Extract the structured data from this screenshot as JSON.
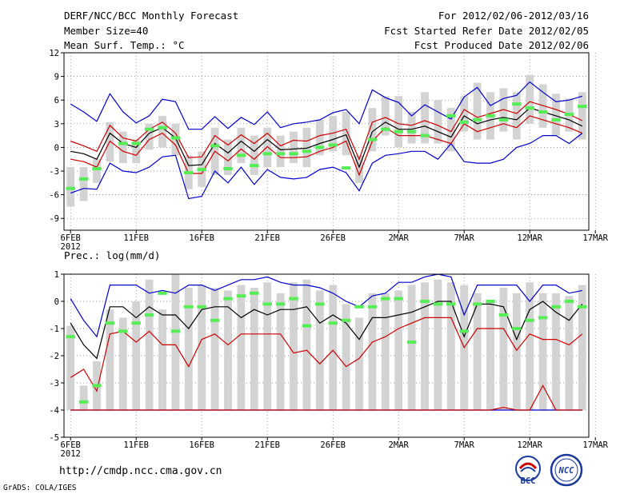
{
  "header": {
    "title": "DERF/NCC/BCC Monthly Forecast",
    "member_size": "Member Size=40",
    "variable": "Mean Surf. Temp.: °C",
    "period": "For 2012/02/06-2012/03/16",
    "fcst_started": "Fcst Started Refer Date 2012/02/05",
    "fcst_produced": "Fcst Produced Date 2012/02/06"
  },
  "footer": {
    "url": "http://cmdp.ncc.cma.gov.cn",
    "credit": "GrADS: COLA/IGES",
    "logo_left": "BCC",
    "logo_right": "NCC"
  },
  "chart_data": [
    {
      "type": "line",
      "title": "Mean Surf. Temp.: °C",
      "x_ticks": [
        "6FEB",
        "11FEB",
        "16FEB",
        "21FEB",
        "26FEB",
        "2MAR",
        "7MAR",
        "12MAR",
        "17MAR"
      ],
      "x_sub_label": "2012",
      "ylim": [
        -10.5,
        12
      ],
      "yticks": [
        -9,
        -6,
        -3,
        0,
        3,
        6,
        9,
        12
      ],
      "ytick_labels": [
        "-9",
        "-6",
        "-3",
        "0",
        "3",
        "6",
        "9",
        "12"
      ],
      "grid": true,
      "days": 40,
      "series": [
        {
          "name": "max",
          "color": "#0000cc",
          "values": [
            5.5,
            4.5,
            3.3,
            6.8,
            4.5,
            3.1,
            4.0,
            6.1,
            5.8,
            2.3,
            2.3,
            3.9,
            2.4,
            3.8,
            2.9,
            4.5,
            2.5,
            3.0,
            3.2,
            3.5,
            4.4,
            4.8,
            3.0,
            7.3,
            6.3,
            5.7,
            4.0,
            5.4,
            4.5,
            3.6,
            6.4,
            7.6,
            5.3,
            6.2,
            6.6,
            8.3,
            7.0,
            5.8,
            6.0,
            6.5
          ]
        },
        {
          "name": "upper",
          "color": "#cc0000",
          "values": [
            0.8,
            0.2,
            -0.5,
            2.8,
            1.2,
            0.8,
            2.3,
            3.2,
            1.8,
            -1.3,
            -1.2,
            1.5,
            0.3,
            1.6,
            0.5,
            1.8,
            0.2,
            0.9,
            0.8,
            1.5,
            1.8,
            2.3,
            -1.5,
            3.2,
            3.8,
            3.0,
            2.8,
            3.4,
            2.8,
            2.0,
            4.8,
            3.8,
            4.3,
            4.8,
            4.3,
            5.8,
            5.3,
            4.8,
            4.2,
            3.4
          ]
        },
        {
          "name": "mean",
          "color": "#000000",
          "values": [
            -0.5,
            -0.8,
            -1.5,
            1.8,
            0.5,
            0.0,
            1.8,
            2.5,
            1.2,
            -2.3,
            -2.2,
            0.5,
            -0.7,
            0.8,
            -0.5,
            1.0,
            -0.3,
            -0.2,
            -0.1,
            0.5,
            1.0,
            1.6,
            -2.5,
            2.0,
            3.2,
            2.3,
            2.3,
            2.7,
            2.0,
            1.3,
            4.0,
            3.0,
            3.5,
            3.8,
            3.5,
            5.0,
            4.5,
            4.0,
            3.5,
            2.7
          ]
        },
        {
          "name": "lower",
          "color": "#cc0000",
          "values": [
            -1.5,
            -1.8,
            -2.5,
            0.8,
            -0.5,
            -1.0,
            1.0,
            1.8,
            0.3,
            -3.3,
            -3.3,
            -0.5,
            -1.7,
            -0.2,
            -1.5,
            0.1,
            -1.3,
            -1.3,
            -1.2,
            -0.5,
            0.0,
            0.8,
            -3.5,
            0.8,
            2.5,
            1.5,
            1.5,
            1.5,
            1.0,
            0.5,
            3.0,
            2.0,
            2.5,
            3.0,
            2.5,
            4.0,
            3.5,
            3.0,
            2.5,
            1.8
          ]
        },
        {
          "name": "min",
          "color": "#0000cc",
          "values": [
            -5.8,
            -5.2,
            -5.3,
            -2.0,
            -3.0,
            -3.2,
            -2.5,
            -1.2,
            -1.0,
            -6.5,
            -6.2,
            -3.0,
            -4.5,
            -2.5,
            -4.7,
            -2.8,
            -3.8,
            -4.0,
            -3.8,
            -2.8,
            -2.5,
            -3.2,
            -5.5,
            -2.0,
            -1.0,
            -0.8,
            -0.5,
            -0.5,
            -1.5,
            0.5,
            -1.8,
            -2.0,
            -2.0,
            -1.5,
            0.0,
            0.5,
            1.5,
            1.5,
            0.5,
            1.8
          ]
        },
        {
          "name": "ensemble_box_low",
          "color": "#d3d3d3",
          "values": [
            -7.5,
            -6.8,
            -4.5,
            -1.8,
            -2.0,
            -2.0,
            -0.3,
            0.0,
            -1.0,
            -5.3,
            -5.0,
            -3.5,
            -3.5,
            -2.0,
            -3.5,
            -2.5,
            -2.5,
            -2.0,
            -2.5,
            -1.0,
            -0.5,
            -1.0,
            -4.5,
            -0.5,
            1.5,
            0.0,
            0.5,
            0.5,
            0.5,
            -0.5,
            2.0,
            1.0,
            1.0,
            2.0,
            1.0,
            3.0,
            2.5,
            1.5,
            2.0,
            1.0
          ]
        },
        {
          "name": "ensemble_box_high",
          "color": "#d3d3d3",
          "values": [
            -2.5,
            -2.5,
            -1.5,
            3.2,
            2.0,
            1.0,
            3.0,
            4.0,
            3.0,
            -1.0,
            -0.5,
            2.5,
            1.0,
            2.5,
            1.5,
            2.5,
            1.5,
            2.0,
            2.5,
            3.5,
            4.0,
            4.5,
            -1.0,
            5.0,
            6.5,
            6.5,
            4.5,
            7.0,
            6.0,
            5.0,
            6.5,
            8.2,
            7.0,
            7.5,
            7.0,
            9.2,
            8.0,
            6.8,
            6.2,
            7.0
          ]
        },
        {
          "name": "observed",
          "color": "#55ee55",
          "values": [
            -5.2,
            -4.0,
            -2.7,
            null,
            0.5,
            0.5,
            2.3,
            2.5,
            1.2,
            -3.2,
            -2.8,
            0.2,
            -2.7,
            -1.0,
            -2.3,
            -0.8,
            -0.8,
            -0.8,
            -0.5,
            0.0,
            0.3,
            -2.6,
            null,
            1.0,
            2.3,
            2.0,
            2.0,
            1.5,
            null,
            4.0,
            3.2,
            3.5,
            4.0,
            3.5,
            5.5,
            5.0,
            4.5,
            3.5,
            4.2,
            5.2
          ]
        }
      ]
    },
    {
      "type": "line",
      "title": "Prec.: log(mm/d)",
      "x_ticks": [
        "6FEB",
        "11FEB",
        "16FEB",
        "21FEB",
        "26FEB",
        "2MAR",
        "7MAR",
        "12MAR",
        "17MAR"
      ],
      "x_sub_label": "2012",
      "ylim": [
        -5,
        1
      ],
      "yticks": [
        -5,
        -4,
        -3,
        -2,
        -1,
        0,
        1
      ],
      "ytick_labels": [
        "-5",
        "-4",
        "-3",
        "-2",
        "-1",
        "0",
        "1"
      ],
      "grid": true,
      "days": 40,
      "series": [
        {
          "name": "max",
          "color": "#0000cc",
          "values": [
            0.1,
            -0.7,
            -1.3,
            0.6,
            0.6,
            0.6,
            0.3,
            0.4,
            0.3,
            0.6,
            0.6,
            0.4,
            0.6,
            0.8,
            0.8,
            0.9,
            0.7,
            0.6,
            0.6,
            0.5,
            0.3,
            0.0,
            -0.2,
            0.2,
            0.3,
            0.7,
            0.7,
            0.9,
            1.0,
            0.9,
            -0.5,
            0.6,
            0.6,
            0.6,
            0.6,
            0.0,
            0.6,
            0.6,
            0.3,
            0.4
          ]
        },
        {
          "name": "mean",
          "color": "#000000",
          "values": [
            -0.8,
            -1.6,
            -2.1,
            -0.2,
            -0.2,
            -0.6,
            -0.2,
            -0.5,
            -0.5,
            -1.0,
            -0.3,
            -0.2,
            -0.2,
            -0.6,
            -0.3,
            -0.5,
            -0.3,
            -0.3,
            -0.2,
            -0.8,
            -0.5,
            -0.8,
            -1.4,
            -0.6,
            -0.6,
            -0.5,
            -0.4,
            -0.2,
            0.0,
            0.0,
            -1.3,
            -0.1,
            -0.1,
            -0.2,
            -1.4,
            -0.3,
            0.0,
            -0.4,
            -0.7,
            -0.1
          ]
        },
        {
          "name": "upper",
          "color": "#cc0000",
          "values": [
            -2.8,
            -2.5,
            -3.3,
            -1.2,
            -1.1,
            -1.5,
            -1.1,
            -1.6,
            -1.6,
            -2.4,
            -1.4,
            -1.2,
            -1.6,
            -1.2,
            -1.2,
            -1.2,
            -1.2,
            -1.9,
            -1.8,
            -2.3,
            -1.8,
            -2.4,
            -2.1,
            -1.5,
            -1.3,
            -1.0,
            -0.8,
            -0.6,
            -0.6,
            -0.6,
            -1.7,
            -1.0,
            -1.0,
            -1.0,
            -1.8,
            -1.2,
            -1.4,
            -1.4,
            -1.6,
            -1.2
          ]
        },
        {
          "name": "lower",
          "color": "#cc0000",
          "values": [
            -4.0,
            -4.0,
            -4.0,
            -4.0,
            -4.0,
            -4.0,
            -4.0,
            -4.0,
            -4.0,
            -4.0,
            -4.0,
            -4.0,
            -4.0,
            -4.0,
            -4.0,
            -4.0,
            -4.0,
            -4.0,
            -4.0,
            -4.0,
            -4.0,
            -4.0,
            -4.0,
            -4.0,
            -4.0,
            -4.0,
            -4.0,
            -4.0,
            -4.0,
            -4.0,
            -4.0,
            -4.0,
            -4.0,
            -3.9,
            -4.0,
            -4.0,
            -3.1,
            -4.0,
            -4.0,
            -4.0
          ]
        },
        {
          "name": "min",
          "color": "#0000cc",
          "values": [
            -4.0,
            -4.0,
            -4.0,
            -4.0,
            -4.0,
            -4.0,
            -4.0,
            -4.0,
            -4.0,
            -4.0,
            -4.0,
            -4.0,
            -4.0,
            -4.0,
            -4.0,
            -4.0,
            -4.0,
            -4.0,
            -4.0,
            -4.0,
            -4.0,
            -4.0,
            -4.0,
            -4.0,
            -4.0,
            -4.0,
            -4.0,
            -4.0,
            -4.0,
            -4.0,
            -4.0,
            -4.0,
            -4.0,
            -4.0,
            -4.0,
            -4.0,
            -4.0,
            -4.0,
            -4.0,
            -4.0
          ]
        },
        {
          "name": "ensemble_box_low",
          "color": "#d3d3d3",
          "values": [
            -4.0,
            -4.0,
            -4.0,
            -4.0,
            -4.0,
            -4.0,
            -4.0,
            -4.0,
            -4.0,
            -4.0,
            -4.0,
            -4.0,
            -4.0,
            -4.0,
            -4.0,
            -4.0,
            -4.0,
            -4.0,
            -4.0,
            -4.0,
            -4.0,
            -4.0,
            -4.0,
            -4.0,
            -4.0,
            -4.0,
            -4.0,
            -4.0,
            -4.0,
            -4.0,
            -4.0,
            -4.0,
            -4.0,
            -4.0,
            -4.0,
            -4.0,
            -4.0,
            -4.0,
            -4.0,
            -4.0
          ]
        },
        {
          "name": "ensemble_box_high",
          "color": "#d3d3d3",
          "values": [
            -0.9,
            -3.1,
            -2.2,
            -0.3,
            -0.6,
            0.0,
            0.8,
            -0.3,
            1.0,
            0.5,
            0.6,
            0.5,
            0.4,
            0.6,
            0.5,
            0.7,
            0.3,
            0.7,
            0.8,
            0.4,
            0.6,
            -0.1,
            -0.6,
            0.3,
            0.3,
            0.4,
            0.6,
            0.7,
            0.8,
            0.7,
            0.6,
            0.3,
            0.0,
            0.5,
            0.3,
            0.7,
            0.3,
            0.3,
            0.2,
            0.6
          ]
        },
        {
          "name": "observed",
          "color": "#55ee55",
          "values": [
            -1.3,
            -3.7,
            -3.1,
            -0.8,
            -1.1,
            -0.8,
            -0.5,
            0.3,
            -1.1,
            -0.2,
            -0.2,
            -0.7,
            0.1,
            0.2,
            0.3,
            -0.1,
            -0.1,
            0.1,
            -0.9,
            -0.1,
            -0.8,
            -0.7,
            -0.2,
            -0.2,
            0.1,
            0.1,
            -1.5,
            0.0,
            -0.1,
            -0.1,
            -1.1,
            -0.1,
            0.0,
            -0.5,
            -1.0,
            -0.7,
            -0.6,
            -0.2,
            0.0,
            -0.2
          ]
        }
      ]
    }
  ]
}
